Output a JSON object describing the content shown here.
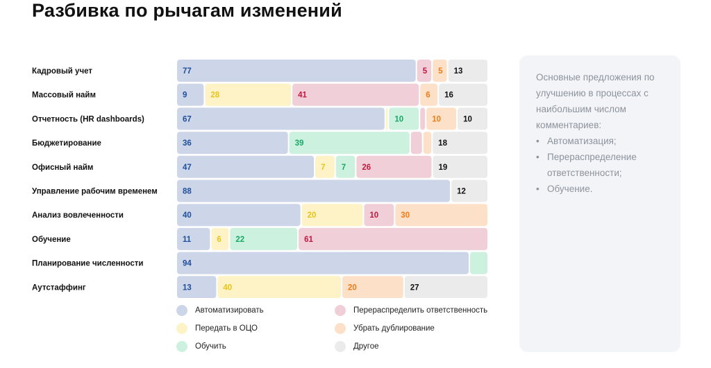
{
  "title": "Разбивка по рычагам изменений",
  "chart_data": {
    "type": "bar",
    "stacked": "100%",
    "orientation": "horizontal",
    "categories": [
      "Кадровый учет",
      "Массовый найм",
      "Отчетность (HR dashboards)",
      "Бюджетирование",
      "Офисный найм",
      "Управление рабочим временем",
      "Анализ вовлеченности",
      "Обучение",
      "Планирование численности",
      "Аутстаффинг"
    ],
    "series": [
      {
        "name": "Автоматизировать",
        "color": "#cdd6e8",
        "text_color": "#1f4e9c",
        "values": [
          77,
          9,
          67,
          36,
          47,
          88,
          40,
          11,
          94,
          13
        ],
        "labels": [
          "77",
          "9",
          "67",
          "36",
          "47",
          "88",
          "40",
          "11",
          "94",
          "13"
        ]
      },
      {
        "name": "Передать в ОЦО",
        "color": "#fdf3c6",
        "text_color": "#e8c31a",
        "values": [
          0,
          28,
          1,
          0,
          7,
          0,
          20,
          6,
          0,
          40
        ],
        "labels": [
          "",
          "28",
          "",
          "",
          "7",
          "",
          "20",
          "6",
          "",
          "40"
        ]
      },
      {
        "name": "Обучить",
        "color": "#cdf1df",
        "text_color": "#1aa866",
        "values": [
          0,
          0,
          10,
          39,
          7,
          0,
          0,
          22,
          6,
          0
        ],
        "labels": [
          "",
          "",
          "10",
          "39",
          "7",
          "",
          "",
          "22",
          "",
          ""
        ]
      },
      {
        "name": "Перераспределить ответственность",
        "color": "#f1cfd8",
        "text_color": "#c0193f",
        "values": [
          5,
          41,
          2,
          4,
          26,
          0,
          10,
          61,
          0,
          0
        ],
        "labels": [
          "5",
          "41",
          "",
          "",
          "26",
          "",
          "10",
          "61",
          "",
          ""
        ]
      },
      {
        "name": "Убрать дублирование",
        "color": "#fde0c8",
        "text_color": "#f07b16",
        "values": [
          5,
          6,
          10,
          3,
          0,
          0,
          30,
          0,
          0,
          20
        ],
        "labels": [
          "5",
          "6",
          "10",
          "",
          "",
          "",
          "30",
          "",
          "",
          "20"
        ]
      },
      {
        "name": "Другое",
        "color": "#ebebeb",
        "text_color": "#111111",
        "values": [
          13,
          16,
          10,
          18,
          19,
          12,
          0,
          0,
          0,
          27
        ],
        "labels": [
          "13",
          "16",
          "10",
          "18",
          "19",
          "12",
          "",
          "",
          "",
          "27"
        ]
      }
    ],
    "legend_position": "bottom"
  },
  "panel": {
    "intro": "Основные предложения по улучшению в процессах с наибольшим числом комментариев:",
    "items": [
      "Автоматизация;",
      "Перераспределение ответственности;",
      "Обучение."
    ]
  }
}
